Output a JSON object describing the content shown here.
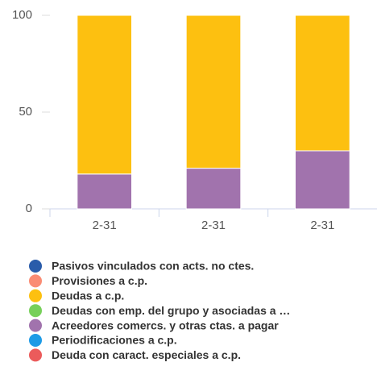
{
  "chart_data": {
    "type": "stacked_bar",
    "categories": [
      "2-31",
      "2-31",
      "2-31"
    ],
    "series": [
      {
        "name": "Pasivos vinculados con acts. no ctes.",
        "color": "#2a5caa",
        "values": [
          0,
          0,
          0
        ]
      },
      {
        "name": "Provisiones a c.p.",
        "color": "#fa8c74",
        "values": [
          0,
          0,
          0
        ]
      },
      {
        "name": "Deudas a c.p.",
        "color": "#fdc010",
        "values": [
          82,
          79,
          70
        ]
      },
      {
        "name": "Deudas con emp. del grupo y asociadas a …",
        "color": "#77d05a",
        "values": [
          0,
          0,
          0
        ]
      },
      {
        "name": "Acreedores comercs. y otras ctas. a pagar",
        "color": "#a173ad",
        "values": [
          18,
          21,
          30
        ]
      },
      {
        "name": "Periodificaciones a c.p.",
        "color": "#1e9be6",
        "values": [
          0,
          0,
          0
        ]
      },
      {
        "name": "Deuda con caract. especiales a c.p.",
        "color": "#eb5b5b",
        "values": [
          0,
          0,
          0
        ]
      }
    ],
    "ylim": [
      0,
      100
    ],
    "yticks": [
      0,
      50,
      100
    ]
  }
}
